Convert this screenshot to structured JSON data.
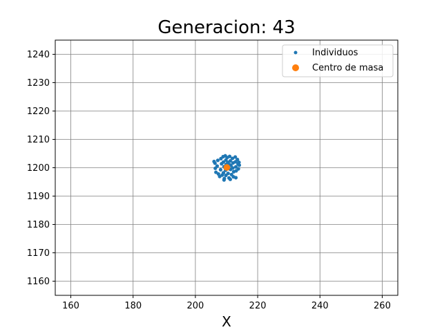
{
  "chart_data": {
    "type": "scatter",
    "title": "Generacion: 43",
    "xlabel": "X",
    "ylabel": "",
    "xlim": [
      155,
      265
    ],
    "ylim": [
      1155,
      1245
    ],
    "xticks": [
      160,
      180,
      200,
      220,
      240,
      260
    ],
    "yticks": [
      1160,
      1170,
      1180,
      1190,
      1200,
      1210,
      1220,
      1230,
      1240
    ],
    "grid": true,
    "legend_position": "top-right",
    "series": [
      {
        "name": "Individuos",
        "color": "#1f77b4",
        "points": [
          [
            206.0,
            1202.2
          ],
          [
            206.3,
            1201.6
          ],
          [
            206.4,
            1199.8
          ],
          [
            206.6,
            1198.4
          ],
          [
            207.2,
            1202.6
          ],
          [
            207.0,
            1200.6
          ],
          [
            207.4,
            1197.8
          ],
          [
            207.8,
            1196.9
          ],
          [
            208.2,
            1203.2
          ],
          [
            208.4,
            1201.4
          ],
          [
            208.1,
            1199.3
          ],
          [
            208.6,
            1197.4
          ],
          [
            208.9,
            1203.9
          ],
          [
            209.0,
            1202.0
          ],
          [
            209.2,
            1200.4
          ],
          [
            209.0,
            1198.2
          ],
          [
            209.3,
            1196.2
          ],
          [
            209.2,
            1195.7
          ],
          [
            209.6,
            1204.2
          ],
          [
            209.8,
            1202.7
          ],
          [
            209.9,
            1201.2
          ],
          [
            209.7,
            1199.1
          ],
          [
            209.8,
            1197.3
          ],
          [
            210.2,
            1203.6
          ],
          [
            210.4,
            1201.9
          ],
          [
            210.6,
            1199.7
          ],
          [
            210.5,
            1198.0
          ],
          [
            210.8,
            1196.4
          ],
          [
            211.0,
            1204.0
          ],
          [
            211.2,
            1202.4
          ],
          [
            211.4,
            1200.8
          ],
          [
            211.3,
            1199.4
          ],
          [
            211.6,
            1197.6
          ],
          [
            211.2,
            1195.9
          ],
          [
            211.9,
            1203.3
          ],
          [
            212.1,
            1201.7
          ],
          [
            212.0,
            1199.9
          ],
          [
            212.3,
            1198.6
          ],
          [
            212.2,
            1196.8
          ],
          [
            212.8,
            1203.8
          ],
          [
            212.9,
            1202.1
          ],
          [
            213.0,
            1200.3
          ],
          [
            213.1,
            1198.9
          ],
          [
            213.0,
            1196.5
          ],
          [
            213.5,
            1202.9
          ],
          [
            213.7,
            1201.3
          ],
          [
            213.8,
            1199.6
          ],
          [
            214.1,
            1200.9
          ],
          [
            214.0,
            1201.9
          ],
          [
            210.0,
            1200.9
          ],
          [
            211.0,
            1201.1
          ],
          [
            209.5,
            1200.0
          ]
        ]
      },
      {
        "name": "Centro de masa",
        "color": "#ff7f0e",
        "points": [
          [
            210.1,
            1200.1
          ]
        ]
      }
    ]
  }
}
